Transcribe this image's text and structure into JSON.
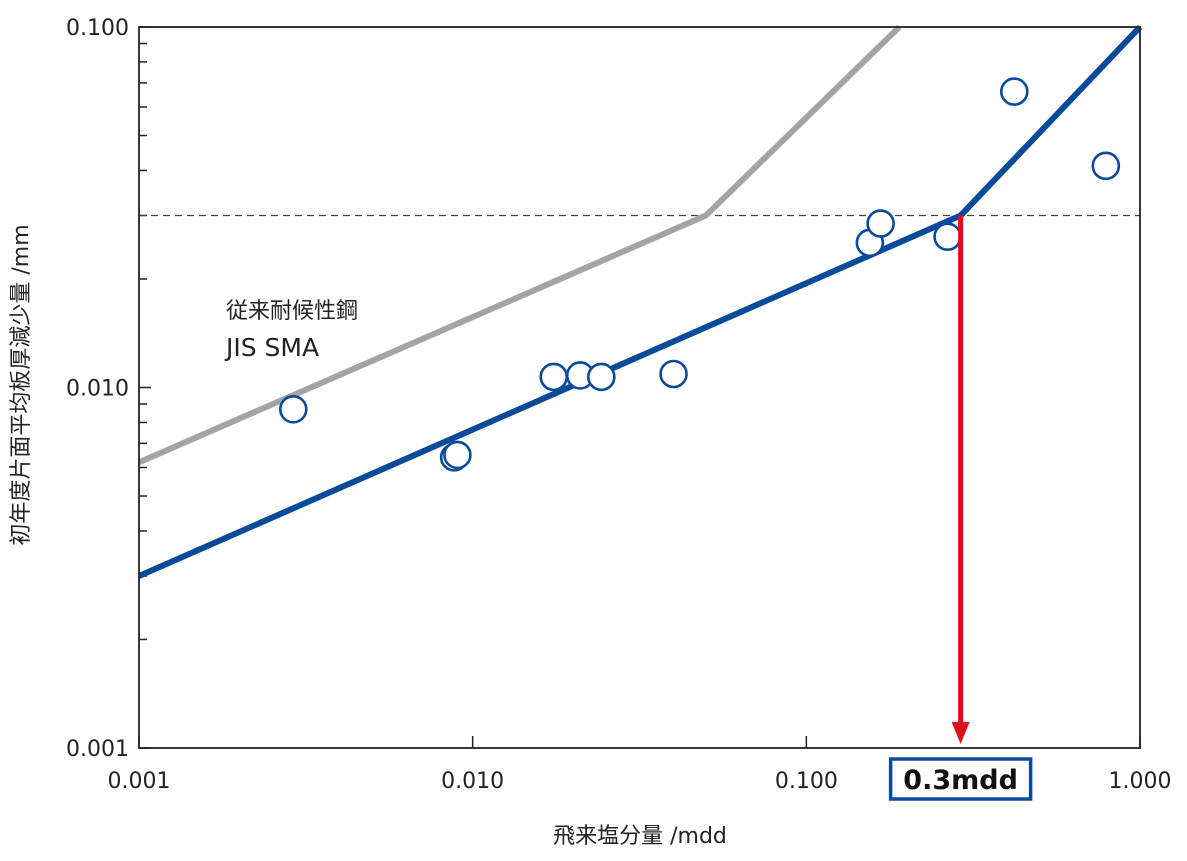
{
  "chart_data": {
    "type": "scatter",
    "title": "",
    "xlabel": "飛来塩分量 /mdd",
    "ylabel": "初年度片面平均板厚減少量 /mm",
    "x_scale": "log",
    "y_scale": "log",
    "xlim": [
      0.001,
      1.0
    ],
    "ylim": [
      0.001,
      0.1
    ],
    "x_ticks": [
      "0.001",
      "0.010",
      "0.100",
      "1.000"
    ],
    "y_ticks": [
      "0.001",
      "0.010",
      "0.100"
    ],
    "grid": false,
    "points": {
      "marker": "open-circle",
      "color": "#0a4a9a",
      "x": [
        0.0029,
        0.0088,
        0.009,
        0.0175,
        0.021,
        0.0243,
        0.04,
        0.155,
        0.167,
        0.265,
        0.42,
        0.79
      ],
      "y": [
        0.0087,
        0.0064,
        0.0065,
        0.0107,
        0.0108,
        0.0107,
        0.0109,
        0.0252,
        0.0285,
        0.0262,
        0.0662,
        0.0412
      ]
    },
    "series": [
      {
        "label": "",
        "color": "#0a4a9a",
        "x": [
          0.001,
          0.29,
          1.0
        ],
        "y": [
          0.003,
          0.03,
          0.1
        ]
      },
      {
        "label": "従来耐候性鋼",
        "label2": "JIS SMA",
        "color": "#a4a4a4",
        "x": [
          0.001,
          0.05,
          0.19
        ],
        "y": [
          0.0062,
          0.03,
          0.1
        ]
      }
    ],
    "reference_line": {
      "y": 0.03,
      "style": "dashed"
    },
    "highlight": {
      "x": 0.29,
      "label": "0.3mdd",
      "arrow_color": "#e0101b",
      "box_color": "#0a4a9a"
    }
  }
}
